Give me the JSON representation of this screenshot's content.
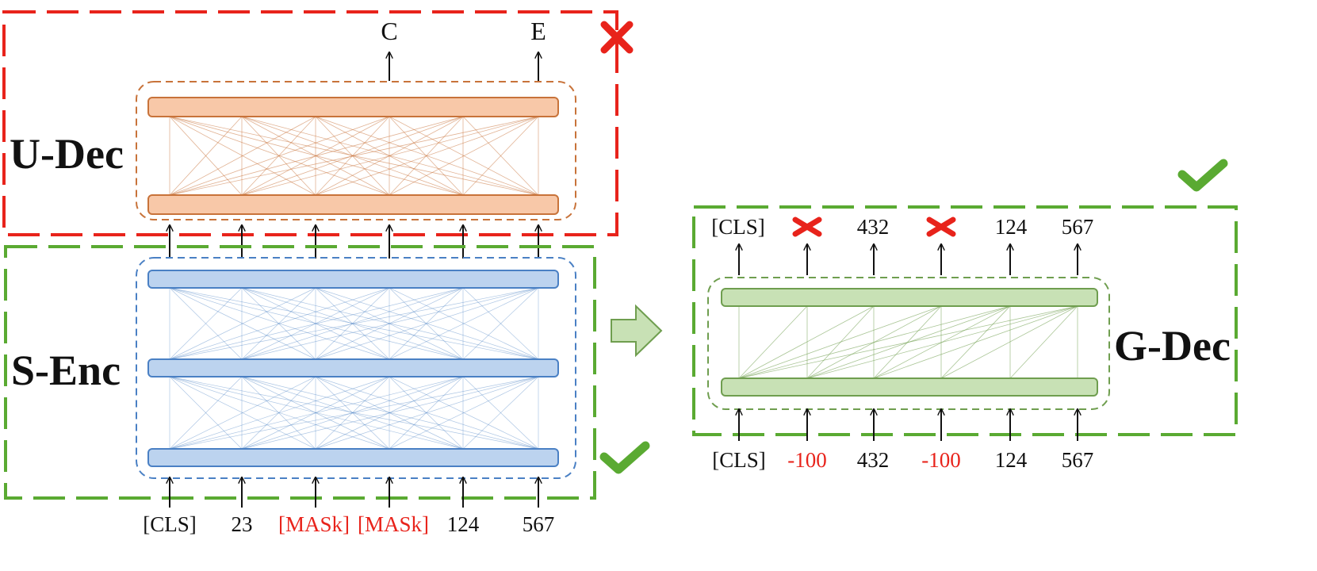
{
  "colors": {
    "red": "#e8231b",
    "green": "#5aaa32",
    "orange_fill": "#f8c8a8",
    "orange_stroke": "#c8733a",
    "blue_fill": "#bcd3ef",
    "blue_stroke": "#4a80c4",
    "g_fill": "#c8e1b5",
    "g_stroke": "#6f9e4f"
  },
  "icons": {
    "reject": "cross-icon",
    "accept": "check-icon",
    "transition": "right-arrow-icon"
  },
  "left": {
    "u_dec": {
      "label": "U-Dec",
      "outputs": [
        "C",
        "E"
      ],
      "status": "rejected"
    },
    "s_enc": {
      "label": "S-Enc",
      "status": "accepted"
    },
    "inputs": [
      {
        "text": "[CLS]",
        "masked": false
      },
      {
        "text": "23",
        "masked": false
      },
      {
        "text": "[MASk]",
        "masked": true
      },
      {
        "text": "[MASk]",
        "masked": true
      },
      {
        "text": "124",
        "masked": false
      },
      {
        "text": "567",
        "masked": false
      }
    ]
  },
  "right": {
    "g_dec": {
      "label": "G-Dec",
      "status": "accepted"
    },
    "outputs": [
      {
        "text": "[CLS]",
        "ignored": false
      },
      {
        "text": "",
        "ignored": true
      },
      {
        "text": "432",
        "ignored": false
      },
      {
        "text": "",
        "ignored": true
      },
      {
        "text": "124",
        "ignored": false
      },
      {
        "text": "567",
        "ignored": false
      }
    ],
    "inputs": [
      {
        "text": "[CLS]",
        "ignored": false
      },
      {
        "text": "-100",
        "ignored": true
      },
      {
        "text": "432",
        "ignored": false
      },
      {
        "text": "-100",
        "ignored": true
      },
      {
        "text": "124",
        "ignored": false
      },
      {
        "text": "567",
        "ignored": false
      }
    ]
  }
}
